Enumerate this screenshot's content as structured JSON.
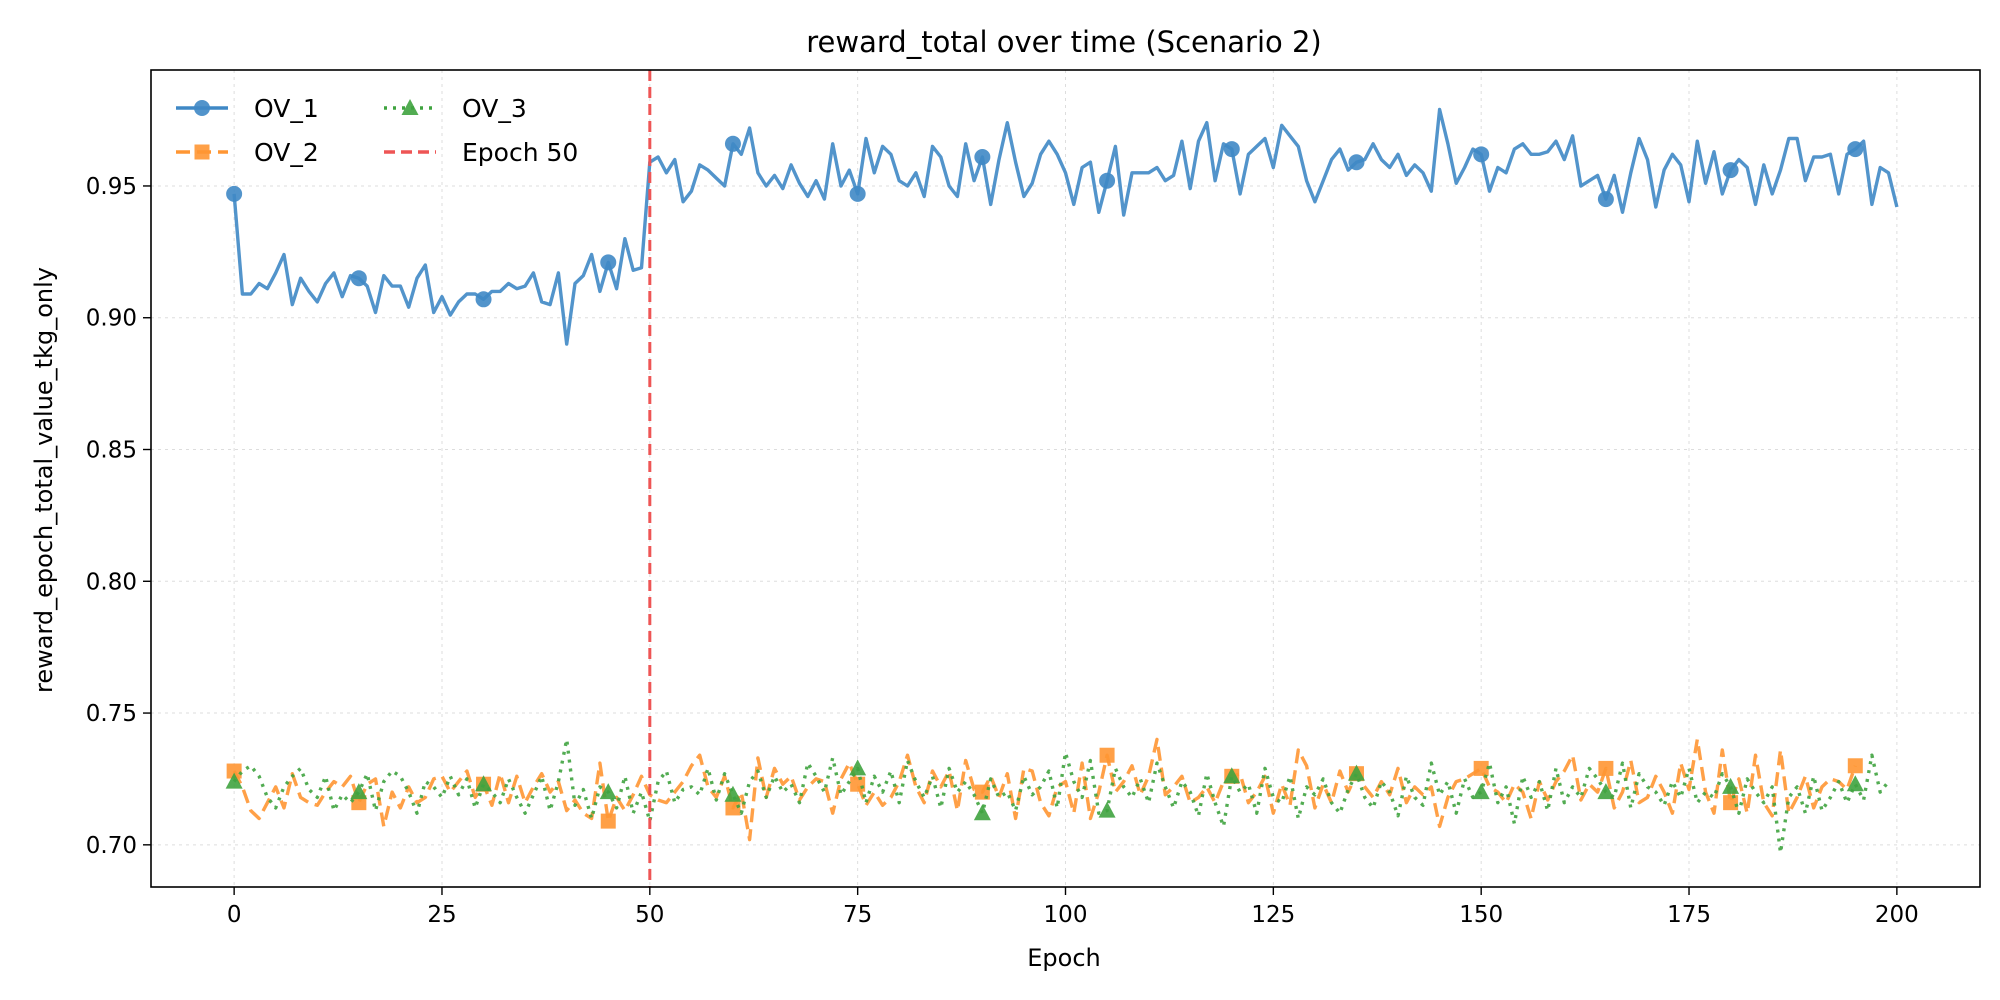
{
  "chart_data": {
    "type": "line",
    "title": "reward_total over time (Scenario 2)",
    "xlabel": "Epoch",
    "ylabel": "reward_epoch_total_value_tkg_only",
    "xlim": [
      -10,
      210
    ],
    "ylim": [
      0.684,
      0.994
    ],
    "xticks": [
      0,
      25,
      50,
      75,
      100,
      125,
      150,
      175,
      200
    ],
    "yticks": [
      0.7,
      0.75,
      0.8,
      0.85,
      0.9,
      0.95
    ],
    "xtick_labels": [
      "0",
      "25",
      "50",
      "75",
      "100",
      "125",
      "150",
      "175",
      "200"
    ],
    "ytick_labels": [
      "0.70",
      "0.75",
      "0.80",
      "0.85",
      "0.90",
      "0.95"
    ],
    "grid": true,
    "legend_position": "top-left",
    "vline": {
      "x": 50,
      "label": "Epoch 50",
      "color": "#ee5555"
    },
    "series": [
      {
        "name": "OV_1",
        "color": "#3f88c5",
        "marker": "circle",
        "style": "solid",
        "values": [
          0.947,
          0.909,
          0.909,
          0.913,
          0.911,
          0.917,
          0.924,
          0.905,
          0.915,
          0.91,
          0.906,
          0.913,
          0.917,
          0.908,
          0.916,
          0.915,
          0.912,
          0.902,
          0.916,
          0.912,
          0.912,
          0.904,
          0.915,
          0.92,
          0.902,
          0.908,
          0.901,
          0.906,
          0.909,
          0.909,
          0.907,
          0.91,
          0.91,
          0.913,
          0.911,
          0.912,
          0.917,
          0.906,
          0.905,
          0.917,
          0.89,
          0.913,
          0.916,
          0.924,
          0.91,
          0.921,
          0.911,
          0.93,
          0.918,
          0.919,
          0.959,
          0.961,
          0.955,
          0.96,
          0.944,
          0.948,
          0.958,
          0.956,
          0.953,
          0.95,
          0.966,
          0.962,
          0.972,
          0.955,
          0.95,
          0.954,
          0.949,
          0.958,
          0.951,
          0.946,
          0.952,
          0.945,
          0.966,
          0.95,
          0.956,
          0.947,
          0.968,
          0.955,
          0.965,
          0.962,
          0.952,
          0.95,
          0.955,
          0.946,
          0.965,
          0.961,
          0.95,
          0.946,
          0.966,
          0.952,
          0.961,
          0.943,
          0.96,
          0.974,
          0.959,
          0.946,
          0.951,
          0.962,
          0.967,
          0.962,
          0.955,
          0.943,
          0.957,
          0.959,
          0.94,
          0.952,
          0.965,
          0.939,
          0.955,
          0.955,
          0.955,
          0.957,
          0.952,
          0.954,
          0.967,
          0.949,
          0.967,
          0.974,
          0.952,
          0.966,
          0.964,
          0.947,
          0.962,
          0.965,
          0.968,
          0.957,
          0.973,
          0.969,
          0.965,
          0.952,
          0.944,
          0.952,
          0.96,
          0.964,
          0.956,
          0.959,
          0.96,
          0.966,
          0.96,
          0.957,
          0.962,
          0.954,
          0.958,
          0.955,
          0.948,
          0.979,
          0.966,
          0.951,
          0.957,
          0.964,
          0.962,
          0.948,
          0.957,
          0.955,
          0.964,
          0.966,
          0.962,
          0.962,
          0.963,
          0.967,
          0.96,
          0.969,
          0.95,
          0.952,
          0.954,
          0.945,
          0.954,
          0.94,
          0.955,
          0.968,
          0.96,
          0.942,
          0.956,
          0.962,
          0.958,
          0.944,
          0.967,
          0.951,
          0.963,
          0.947,
          0.956,
          0.96,
          0.957,
          0.943,
          0.958,
          0.947,
          0.956,
          0.968,
          0.968,
          0.952,
          0.961,
          0.961,
          0.962,
          0.947,
          0.962,
          0.964,
          0.967,
          0.943,
          0.957,
          0.955,
          0.942
        ]
      },
      {
        "name": "OV_2",
        "color": "#ff9633",
        "marker": "square",
        "style": "dashed",
        "values": [
          0.728,
          0.722,
          0.713,
          0.71,
          0.716,
          0.722,
          0.714,
          0.727,
          0.718,
          0.716,
          0.715,
          0.72,
          0.724,
          0.722,
          0.726,
          0.716,
          0.723,
          0.725,
          0.707,
          0.72,
          0.714,
          0.722,
          0.716,
          0.718,
          0.725,
          0.726,
          0.72,
          0.724,
          0.728,
          0.718,
          0.723,
          0.715,
          0.727,
          0.716,
          0.726,
          0.716,
          0.722,
          0.727,
          0.72,
          0.724,
          0.713,
          0.717,
          0.712,
          0.71,
          0.731,
          0.709,
          0.718,
          0.713,
          0.719,
          0.726,
          0.719,
          0.717,
          0.716,
          0.72,
          0.724,
          0.73,
          0.734,
          0.722,
          0.718,
          0.726,
          0.714,
          0.72,
          0.702,
          0.733,
          0.718,
          0.729,
          0.723,
          0.726,
          0.717,
          0.722,
          0.725,
          0.724,
          0.712,
          0.725,
          0.731,
          0.723,
          0.715,
          0.72,
          0.715,
          0.718,
          0.724,
          0.734,
          0.722,
          0.716,
          0.728,
          0.722,
          0.728,
          0.713,
          0.732,
          0.721,
          0.72,
          0.726,
          0.718,
          0.727,
          0.71,
          0.729,
          0.728,
          0.716,
          0.711,
          0.722,
          0.724,
          0.712,
          0.731,
          0.71,
          0.72,
          0.734,
          0.72,
          0.724,
          0.73,
          0.719,
          0.726,
          0.74,
          0.719,
          0.722,
          0.726,
          0.716,
          0.718,
          0.722,
          0.716,
          0.724,
          0.726,
          0.727,
          0.716,
          0.72,
          0.726,
          0.712,
          0.723,
          0.715,
          0.736,
          0.73,
          0.714,
          0.723,
          0.716,
          0.728,
          0.72,
          0.727,
          0.722,
          0.718,
          0.724,
          0.719,
          0.729,
          0.716,
          0.722,
          0.719,
          0.722,
          0.707,
          0.718,
          0.724,
          0.725,
          0.727,
          0.729,
          0.722,
          0.72,
          0.716,
          0.723,
          0.72,
          0.71,
          0.724,
          0.717,
          0.724,
          0.728,
          0.734,
          0.717,
          0.723,
          0.72,
          0.729,
          0.714,
          0.72,
          0.732,
          0.716,
          0.718,
          0.726,
          0.72,
          0.712,
          0.731,
          0.721,
          0.74,
          0.72,
          0.712,
          0.736,
          0.716,
          0.725,
          0.712,
          0.734,
          0.716,
          0.711,
          0.736,
          0.712,
          0.718,
          0.726,
          0.714,
          0.722,
          0.725,
          0.724,
          0.721,
          0.73
        ]
      },
      {
        "name": "OV_3",
        "color": "#3fa33f",
        "marker": "triangle",
        "style": "dotted",
        "values": [
          0.724,
          0.728,
          0.73,
          0.726,
          0.718,
          0.714,
          0.722,
          0.726,
          0.729,
          0.721,
          0.718,
          0.726,
          0.713,
          0.719,
          0.716,
          0.72,
          0.727,
          0.713,
          0.724,
          0.728,
          0.726,
          0.72,
          0.712,
          0.724,
          0.722,
          0.718,
          0.726,
          0.719,
          0.725,
          0.714,
          0.723,
          0.72,
          0.716,
          0.725,
          0.718,
          0.712,
          0.719,
          0.726,
          0.713,
          0.724,
          0.74,
          0.715,
          0.721,
          0.71,
          0.722,
          0.72,
          0.714,
          0.726,
          0.712,
          0.72,
          0.709,
          0.724,
          0.728,
          0.716,
          0.721,
          0.722,
          0.719,
          0.729,
          0.717,
          0.727,
          0.719,
          0.712,
          0.724,
          0.728,
          0.718,
          0.726,
          0.72,
          0.723,
          0.716,
          0.731,
          0.726,
          0.72,
          0.733,
          0.719,
          0.724,
          0.729,
          0.716,
          0.726,
          0.72,
          0.728,
          0.716,
          0.732,
          0.724,
          0.718,
          0.726,
          0.714,
          0.729,
          0.72,
          0.724,
          0.719,
          0.712,
          0.725,
          0.718,
          0.72,
          0.713,
          0.726,
          0.719,
          0.722,
          0.728,
          0.714,
          0.735,
          0.724,
          0.718,
          0.732,
          0.712,
          0.713,
          0.729,
          0.722,
          0.718,
          0.725,
          0.716,
          0.731,
          0.722,
          0.714,
          0.724,
          0.72,
          0.711,
          0.727,
          0.716,
          0.707,
          0.726,
          0.72,
          0.723,
          0.712,
          0.729,
          0.718,
          0.716,
          0.726,
          0.71,
          0.722,
          0.719,
          0.725,
          0.716,
          0.712,
          0.721,
          0.727,
          0.718,
          0.714,
          0.724,
          0.72,
          0.711,
          0.726,
          0.718,
          0.715,
          0.731,
          0.719,
          0.724,
          0.712,
          0.725,
          0.718,
          0.72,
          0.731,
          0.716,
          0.722,
          0.708,
          0.726,
          0.718,
          0.724,
          0.713,
          0.729,
          0.716,
          0.722,
          0.718,
          0.729,
          0.725,
          0.72,
          0.718,
          0.731,
          0.714,
          0.727,
          0.722,
          0.72,
          0.715,
          0.724,
          0.718,
          0.729,
          0.716,
          0.72,
          0.718,
          0.727,
          0.722,
          0.712,
          0.725,
          0.72,
          0.716,
          0.722,
          0.697,
          0.718,
          0.722,
          0.712,
          0.726,
          0.713,
          0.718,
          0.724,
          0.716,
          0.723,
          0.717,
          0.734,
          0.72,
          0.724
        ]
      }
    ]
  }
}
